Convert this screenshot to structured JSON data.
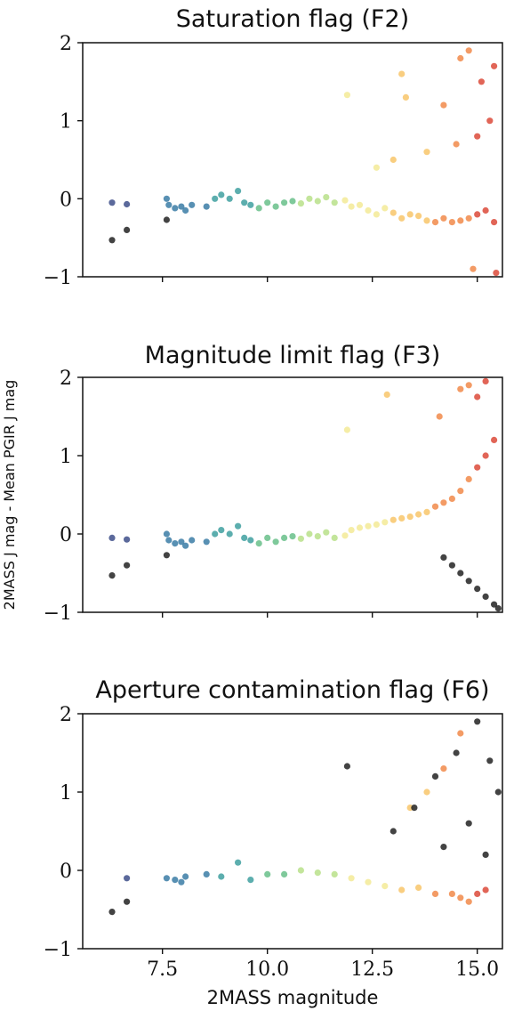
{
  "chart_data": [
    {
      "type": "scatter",
      "title": "Saturation flag (F2)",
      "xlim": [
        5.6,
        15.6
      ],
      "ylim": [
        -1,
        2
      ],
      "yticks": [
        -1,
        0,
        1,
        2
      ],
      "ytick_labels": [
        "−1",
        "0",
        "1",
        "2"
      ],
      "xticks": [
        7.5,
        10.0,
        12.5,
        15.0
      ],
      "xtick_labels": [],
      "flagged_points": 0,
      "colormap": "density (blue-green-yellow-red)",
      "series": [
        {
          "x": [
            6.3,
            6.65,
            7.6,
            7.65,
            7.8,
            7.95,
            8.05,
            8.2,
            8.55,
            8.75,
            8.9,
            9.1,
            9.3,
            9.45,
            9.6,
            9.8,
            10.0,
            10.2,
            10.4,
            10.6,
            10.8,
            11.0,
            11.2,
            11.4,
            11.6,
            11.85,
            12.0,
            12.2,
            12.4,
            12.6,
            12.8,
            13.0,
            13.2,
            13.4,
            13.6,
            13.8,
            14.0,
            14.2,
            14.4,
            14.6,
            14.8,
            15.0,
            15.2,
            15.4,
            11.9,
            13.2,
            13.3,
            14.2,
            14.6,
            14.8,
            15.1,
            15.3,
            15.4,
            15.0,
            14.5,
            13.8,
            13.0,
            12.6,
            15.45,
            14.9
          ],
          "y": [
            -0.05,
            -0.07,
            0.0,
            -0.08,
            -0.12,
            -0.1,
            -0.15,
            -0.08,
            -0.1,
            0.0,
            0.05,
            0.0,
            0.1,
            -0.05,
            -0.08,
            -0.12,
            -0.05,
            -0.1,
            -0.05,
            -0.03,
            -0.06,
            0.0,
            -0.03,
            0.02,
            -0.05,
            -0.02,
            -0.1,
            -0.08,
            -0.15,
            -0.2,
            -0.12,
            -0.18,
            -0.25,
            -0.2,
            -0.22,
            -0.28,
            -0.3,
            -0.25,
            -0.3,
            -0.28,
            -0.25,
            -0.2,
            -0.15,
            -0.3,
            1.33,
            1.6,
            1.3,
            1.2,
            1.8,
            1.9,
            1.5,
            1.0,
            1.7,
            0.8,
            0.7,
            0.6,
            0.5,
            0.4,
            -0.95,
            -0.9
          ]
        },
        {
          "name": "",
          "x": [
            6.3,
            6.65,
            7.6
          ],
          "y": [
            -0.53,
            -0.4,
            -0.27
          ]
        }
      ]
    },
    {
      "type": "scatter",
      "title": "Magnitude limit flag (F3)",
      "xlim": [
        5.6,
        15.6
      ],
      "ylim": [
        -1,
        2
      ],
      "yticks": [
        -1,
        0,
        1,
        2
      ],
      "ytick_labels": [
        "−1",
        "0",
        "1",
        "2"
      ],
      "xticks": [
        7.5,
        10.0,
        12.5,
        15.0
      ],
      "xtick_labels": [],
      "colormap": "density (blue-green-yellow-red)",
      "series": [
        {
          "x": [
            6.3,
            6.65,
            7.6,
            7.65,
            7.8,
            7.95,
            8.05,
            8.2,
            8.55,
            8.75,
            8.9,
            9.1,
            9.3,
            9.45,
            9.6,
            9.8,
            10.0,
            10.2,
            10.4,
            10.6,
            10.8,
            11.0,
            11.2,
            11.4,
            11.6,
            11.85,
            12.0,
            12.2,
            12.4,
            12.6,
            12.8,
            13.0,
            13.2,
            13.4,
            13.6,
            13.8,
            14.0,
            14.2,
            14.4,
            14.6,
            14.8,
            15.0,
            15.2,
            15.4,
            11.9,
            12.85,
            14.1,
            14.6,
            14.8,
            15.0,
            15.2
          ],
          "y": [
            -0.05,
            -0.07,
            0.0,
            -0.08,
            -0.12,
            -0.1,
            -0.15,
            -0.08,
            -0.1,
            0.0,
            0.05,
            0.0,
            0.1,
            -0.05,
            -0.08,
            -0.12,
            -0.05,
            -0.1,
            -0.05,
            -0.03,
            -0.06,
            0.0,
            -0.03,
            0.02,
            -0.05,
            -0.02,
            0.05,
            0.08,
            0.1,
            0.12,
            0.15,
            0.18,
            0.2,
            0.22,
            0.25,
            0.28,
            0.35,
            0.4,
            0.45,
            0.55,
            0.7,
            0.85,
            1.0,
            1.2,
            1.33,
            1.78,
            1.5,
            1.85,
            1.9,
            1.75,
            1.95
          ]
        },
        {
          "name": "",
          "x": [
            6.3,
            6.65,
            7.6,
            14.2,
            14.4,
            14.6,
            14.8,
            15.0,
            15.2,
            15.4,
            15.5
          ],
          "y": [
            -0.53,
            -0.4,
            -0.27,
            -0.3,
            -0.4,
            -0.5,
            -0.6,
            -0.7,
            -0.8,
            -0.9,
            -0.95
          ]
        }
      ]
    },
    {
      "type": "scatter",
      "title": "Aperture contamination flag (F6)",
      "xlim": [
        5.6,
        15.6
      ],
      "ylim": [
        -1,
        2
      ],
      "yticks": [
        -1,
        0,
        1,
        2
      ],
      "ytick_labels": [
        "−1",
        "0",
        "1",
        "2"
      ],
      "xticks": [
        7.5,
        10.0,
        12.5,
        15.0
      ],
      "xtick_labels": [
        "7.5",
        "10.0",
        "12.5",
        "15.0"
      ],
      "xlabel": "2MASS magnitude",
      "colormap": "density (blue-green-yellow-red)",
      "series": [
        {
          "x": [
            6.65,
            7.6,
            7.8,
            7.95,
            8.05,
            8.55,
            8.9,
            9.3,
            9.6,
            10.0,
            10.4,
            10.8,
            11.2,
            11.6,
            12.0,
            12.4,
            12.8,
            13.2,
            13.6,
            14.0,
            14.4,
            14.6,
            14.8,
            15.0,
            15.2,
            13.4,
            13.8,
            14.2,
            14.6
          ],
          "y": [
            -0.1,
            -0.1,
            -0.12,
            -0.15,
            -0.08,
            -0.05,
            -0.08,
            0.1,
            -0.12,
            -0.05,
            -0.05,
            0.0,
            -0.03,
            -0.05,
            -0.1,
            -0.15,
            -0.2,
            -0.25,
            -0.22,
            -0.3,
            -0.3,
            -0.35,
            -0.4,
            -0.3,
            -0.25,
            0.8,
            1.0,
            1.3,
            1.75
          ]
        },
        {
          "name": "",
          "x": [
            6.3,
            6.65,
            11.9,
            13.0,
            13.5,
            14.0,
            14.5,
            15.0,
            15.3,
            15.5,
            14.2,
            14.8,
            15.2
          ],
          "y": [
            -0.53,
            -0.4,
            1.33,
            0.5,
            0.8,
            1.2,
            1.5,
            1.9,
            1.4,
            1.0,
            0.3,
            0.6,
            0.2
          ]
        }
      ]
    }
  ],
  "ylabel": "2MASS J mag - Mean PGIR J mag"
}
